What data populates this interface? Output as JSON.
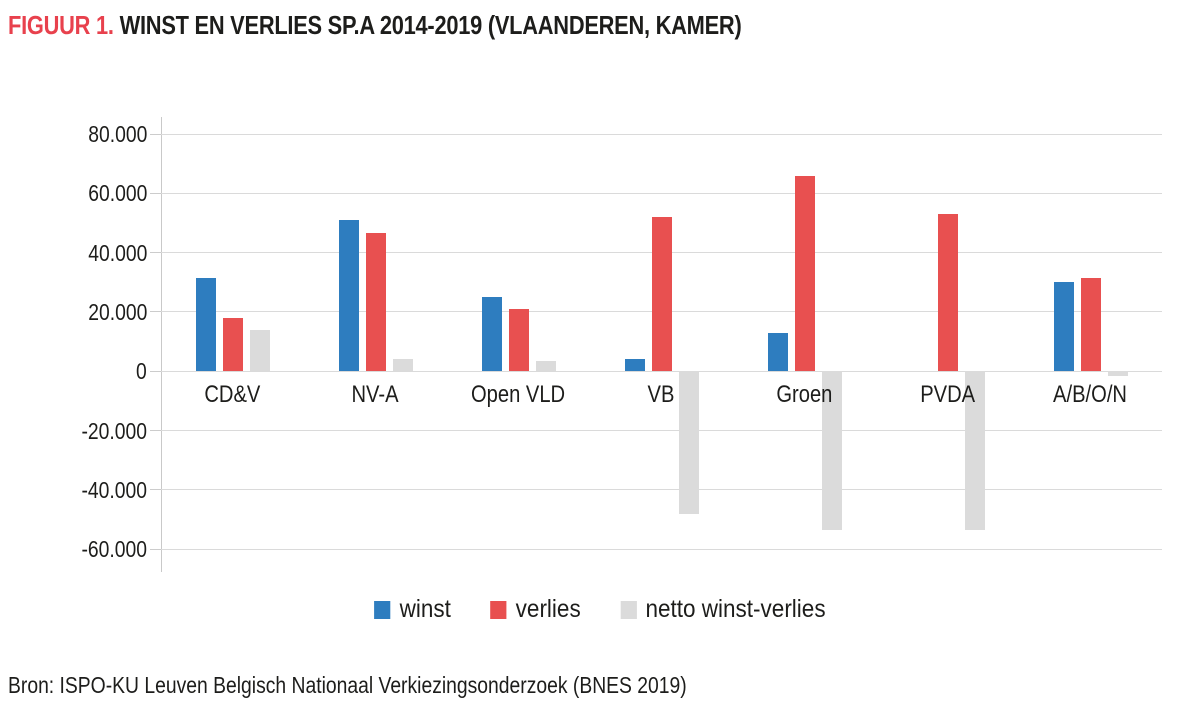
{
  "title": {
    "prefix": "FIGUUR 1.",
    "text": "WINST EN VERLIES SP.A 2014-2019 (VLAANDEREN, KAMER)"
  },
  "source": "Bron: ISPO-KU Leuven Belgisch Nationaal Verkiezingsonderzoek (BNES 2019)",
  "colors": {
    "title_accent": "#e8414d",
    "text": "#1d1d1b",
    "gridline": "#dadada",
    "axis_line": "#c9c9c9",
    "winst": "#2e7dbf",
    "verlies": "#e85050",
    "netto": "#dbdbdb"
  },
  "chart_data": {
    "type": "bar",
    "title": "WINST EN VERLIES SP.A 2014-2019 (VLAANDEREN, KAMER)",
    "categories": [
      "CD&V",
      "NV-A",
      "Open VLD",
      "VB",
      "Groen",
      "PVDA",
      "A/B/O/N"
    ],
    "series": [
      {
        "name": "winst",
        "color": "#2e7dbf",
        "values": [
          31500,
          51000,
          25000,
          4000,
          13000,
          0,
          30000
        ]
      },
      {
        "name": "verlies",
        "color": "#e85050",
        "values": [
          18000,
          46500,
          21000,
          52000,
          66000,
          53000,
          31500
        ]
      },
      {
        "name": "netto winst-verlies",
        "color": "#dbdbdb",
        "values": [
          14000,
          4000,
          3500,
          -48000,
          -53500,
          -53500,
          -1500
        ]
      }
    ],
    "ylim": [
      -60000,
      80000
    ],
    "ytick_interval": 20000,
    "yticks": [
      80000,
      60000,
      40000,
      20000,
      0,
      -20000,
      -40000,
      -60000
    ],
    "ytick_labels": [
      "80.000",
      "60.000",
      "40.000",
      "20.000",
      "0",
      "-20.000",
      "-40.000",
      "-60.000"
    ],
    "grid": true,
    "legend_position": "bottom",
    "xlabel": "",
    "ylabel": ""
  }
}
